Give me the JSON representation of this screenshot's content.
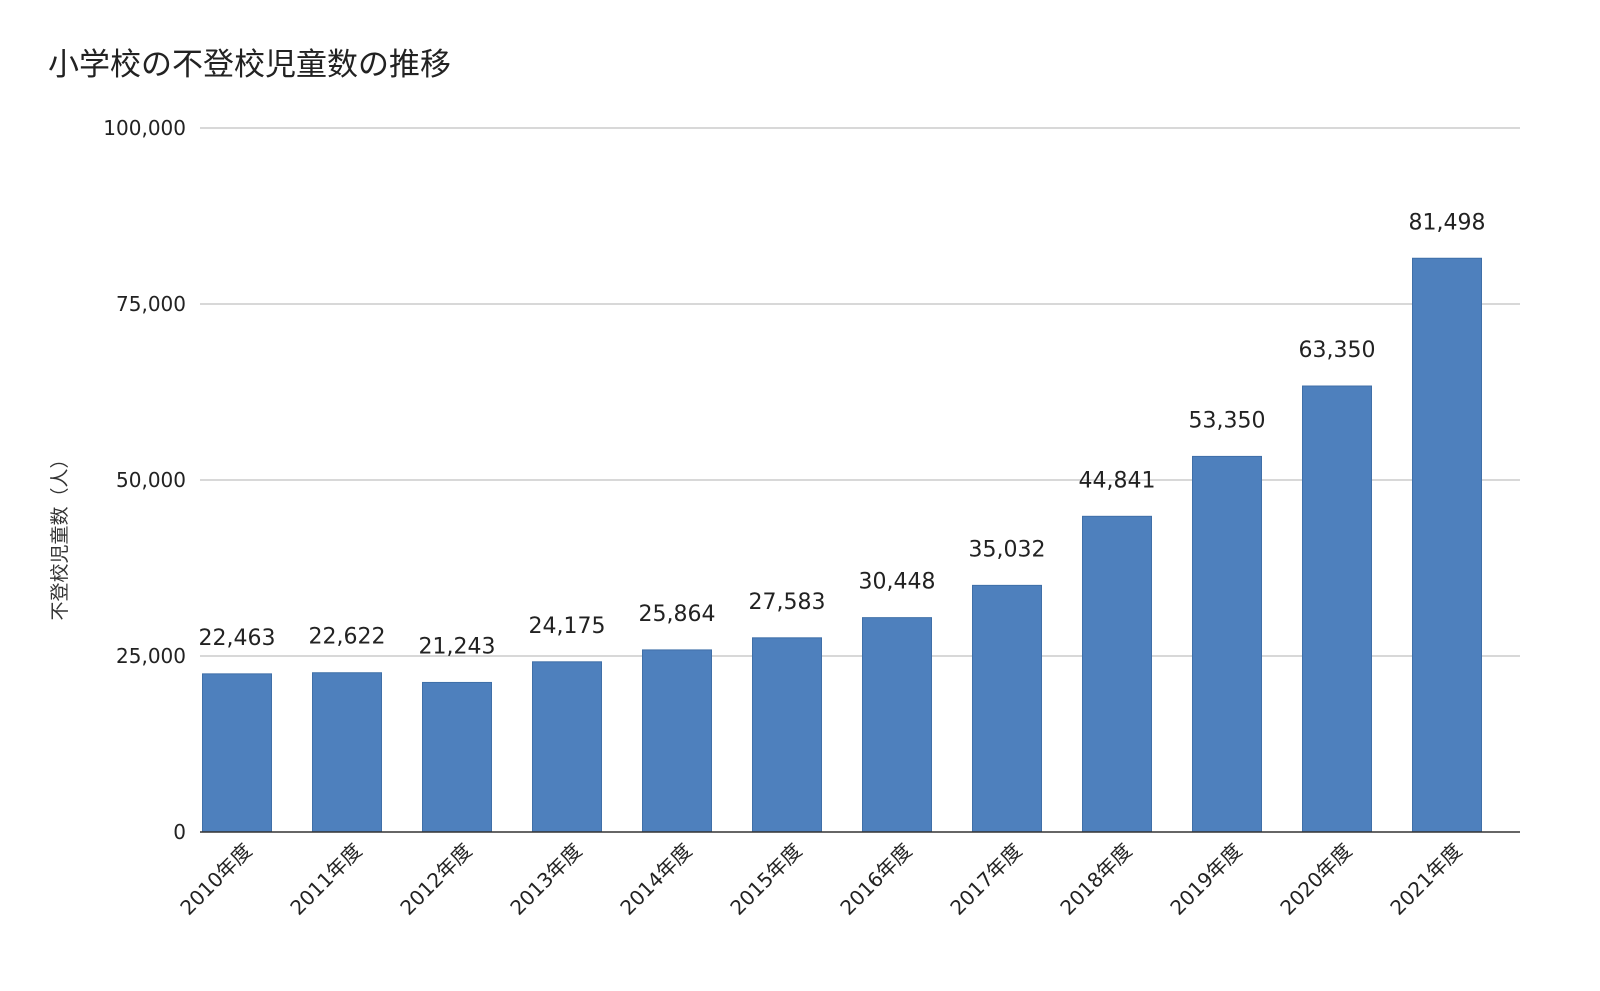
{
  "chart_data": {
    "type": "bar",
    "title": "小学校の不登校児童数の推移",
    "xlabel": "",
    "ylabel": "不登校児童数（人）",
    "categories": [
      "2010年度",
      "2011年度",
      "2012年度",
      "2013年度",
      "2014年度",
      "2015年度",
      "2016年度",
      "2017年度",
      "2018年度",
      "2019年度",
      "2020年度",
      "2021年度"
    ],
    "values": [
      22463,
      22622,
      21243,
      24175,
      25864,
      27583,
      30448,
      35032,
      44841,
      53350,
      63350,
      81498
    ],
    "data_labels": [
      "22,463",
      "22,622",
      "21,243",
      "24,175",
      "25,864",
      "27,583",
      "30,448",
      "35,032",
      "44,841",
      "53,350",
      "63,350",
      "81,498"
    ],
    "ylim": [
      0,
      100000
    ],
    "y_ticks": [
      0,
      25000,
      50000,
      75000,
      100000
    ],
    "y_tick_labels": [
      "0",
      "25,000",
      "50,000",
      "75,000",
      "100,000"
    ],
    "grid": true,
    "legend": "none",
    "bar_color": "#4e80bd"
  }
}
